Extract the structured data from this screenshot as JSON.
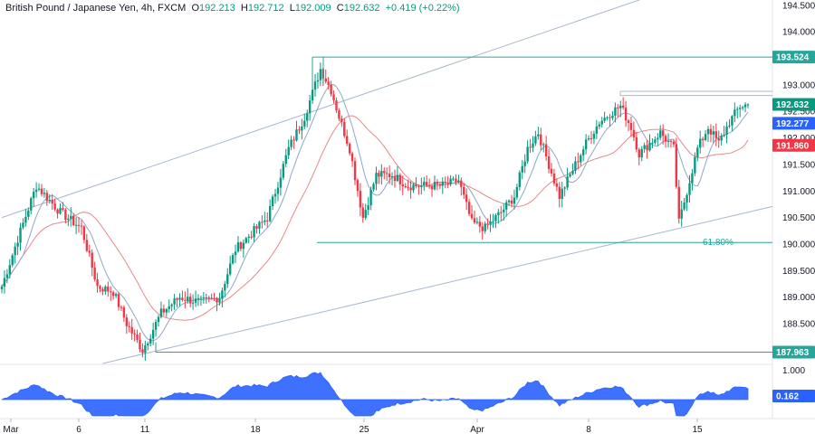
{
  "header": {
    "title": "British Pound / Japanese Yen, 4h, FXCM",
    "o_label": "O",
    "o_value": "192.213",
    "h_label": "H",
    "h_value": "192.712",
    "l_label": "L",
    "l_value": "192.009",
    "c_label": "C",
    "c_value": "192.632",
    "change": "+0.419 (+0.22%)"
  },
  "colors": {
    "up": "#089981",
    "down": "#f23645",
    "ma_fast": "#8fa8c8",
    "ma_slow": "#e58a8a",
    "channel": "#a7b8cc",
    "level": "#26a69a",
    "osc": "#2962ff",
    "last_price": "#089981",
    "ma_fast_tag": "#2962ff",
    "ma_slow_tag": "#f23645",
    "osc_tag": "#2962ff"
  },
  "chart_data": {
    "type": "candlestick",
    "price_axis": {
      "min": 187.75,
      "max": 194.6,
      "ticks": [
        "194.500",
        "194.000",
        "193.500",
        "193.000",
        "192.500",
        "192.000",
        "191.500",
        "191.000",
        "190.500",
        "190.000",
        "189.500",
        "189.000",
        "188.500",
        "188.000"
      ]
    },
    "time_axis": {
      "labels": [
        "Mar",
        "6",
        "11",
        "18",
        "25",
        "Apr",
        "8",
        "15"
      ]
    },
    "levels": [
      {
        "name": "high-level",
        "value": 193.524,
        "label": "193.524"
      },
      {
        "name": "low-level",
        "value": 187.963,
        "label": "187.963"
      },
      {
        "name": "fib-61.8",
        "value": 190.03,
        "label": "61.80%"
      },
      {
        "name": "resistance-upper",
        "value": 192.88,
        "label": ""
      },
      {
        "name": "resistance-lower",
        "value": 192.8,
        "label": ""
      }
    ],
    "price_tags": [
      {
        "name": "last-price",
        "value": 192.632,
        "label": "192.632"
      },
      {
        "name": "ma-fast",
        "value": 192.277,
        "label": "192.277"
      },
      {
        "name": "ma-slow",
        "value": 191.86,
        "label": "191.860"
      }
    ],
    "oscillator": {
      "axis_label": "1.000",
      "last_value": "0.162"
    },
    "anchors": [
      [
        0,
        189.2
      ],
      [
        6,
        190.1
      ],
      [
        13,
        191.1
      ],
      [
        22,
        190.6
      ],
      [
        30,
        190.3
      ],
      [
        36,
        189.2
      ],
      [
        42,
        189.1
      ],
      [
        47,
        188.5
      ],
      [
        53,
        188.0
      ],
      [
        60,
        188.7
      ],
      [
        67,
        189.0
      ],
      [
        75,
        188.9
      ],
      [
        82,
        189.0
      ],
      [
        88,
        189.9
      ],
      [
        94,
        190.2
      ],
      [
        100,
        190.5
      ],
      [
        108,
        191.8
      ],
      [
        114,
        192.4
      ],
      [
        120,
        193.3
      ],
      [
        124,
        192.9
      ],
      [
        127,
        192.4
      ],
      [
        131,
        191.8
      ],
      [
        136,
        190.5
      ],
      [
        141,
        191.3
      ],
      [
        147,
        191.3
      ],
      [
        153,
        191.1
      ],
      [
        160,
        191.1
      ],
      [
        166,
        191.1
      ],
      [
        172,
        191.2
      ],
      [
        177,
        190.4
      ],
      [
        182,
        190.3
      ],
      [
        188,
        190.6
      ],
      [
        193,
        190.9
      ],
      [
        198,
        191.8
      ],
      [
        202,
        192.1
      ],
      [
        206,
        191.5
      ],
      [
        210,
        190.9
      ],
      [
        215,
        191.4
      ],
      [
        220,
        191.9
      ],
      [
        225,
        192.3
      ],
      [
        230,
        192.5
      ],
      [
        233,
        192.6
      ],
      [
        237,
        192.2
      ],
      [
        240,
        191.7
      ],
      [
        244,
        191.9
      ],
      [
        248,
        192.1
      ],
      [
        253,
        191.8
      ],
      [
        255,
        190.4
      ],
      [
        258,
        191.0
      ],
      [
        262,
        191.8
      ],
      [
        266,
        192.2
      ],
      [
        270,
        191.9
      ],
      [
        274,
        192.3
      ],
      [
        278,
        192.6
      ],
      [
        281,
        192.63
      ]
    ]
  }
}
